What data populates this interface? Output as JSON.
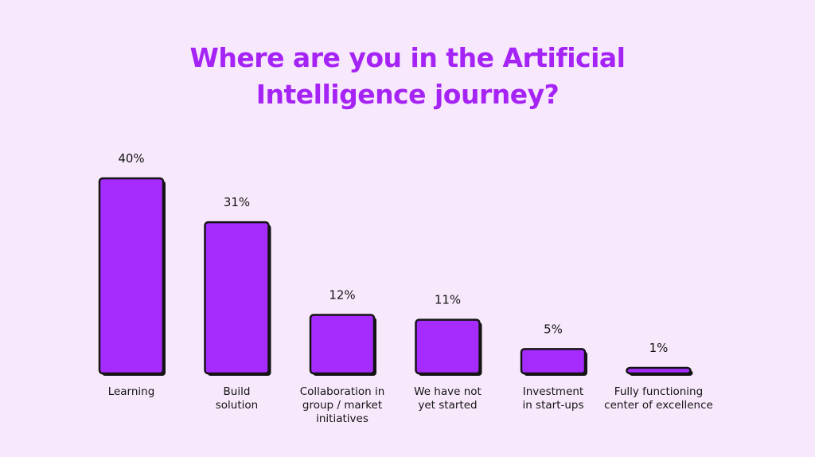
{
  "chart_data": {
    "type": "bar",
    "title_lines": [
      "Where are you in the Artificial",
      "Intelligence journey?"
    ],
    "categories": [
      [
        "Learning"
      ],
      [
        "Build",
        "solution"
      ],
      [
        "Collaboration in",
        "group / market",
        "initiatives"
      ],
      [
        "We have not",
        "yet started"
      ],
      [
        "Investment",
        "in start-ups"
      ],
      [
        "Fully functioning",
        "center of excellence"
      ]
    ],
    "values": [
      40,
      31,
      12,
      11,
      5,
      1
    ],
    "value_labels": [
      "40%",
      "31%",
      "12%",
      "11%",
      "5%",
      "1%"
    ],
    "ylim": [
      0,
      40
    ],
    "grid": false,
    "legend": "none",
    "colors": {
      "bar": "#a52cfd",
      "outline": "#141414",
      "title": "#a524f5",
      "background": "#f8e8fc"
    }
  }
}
